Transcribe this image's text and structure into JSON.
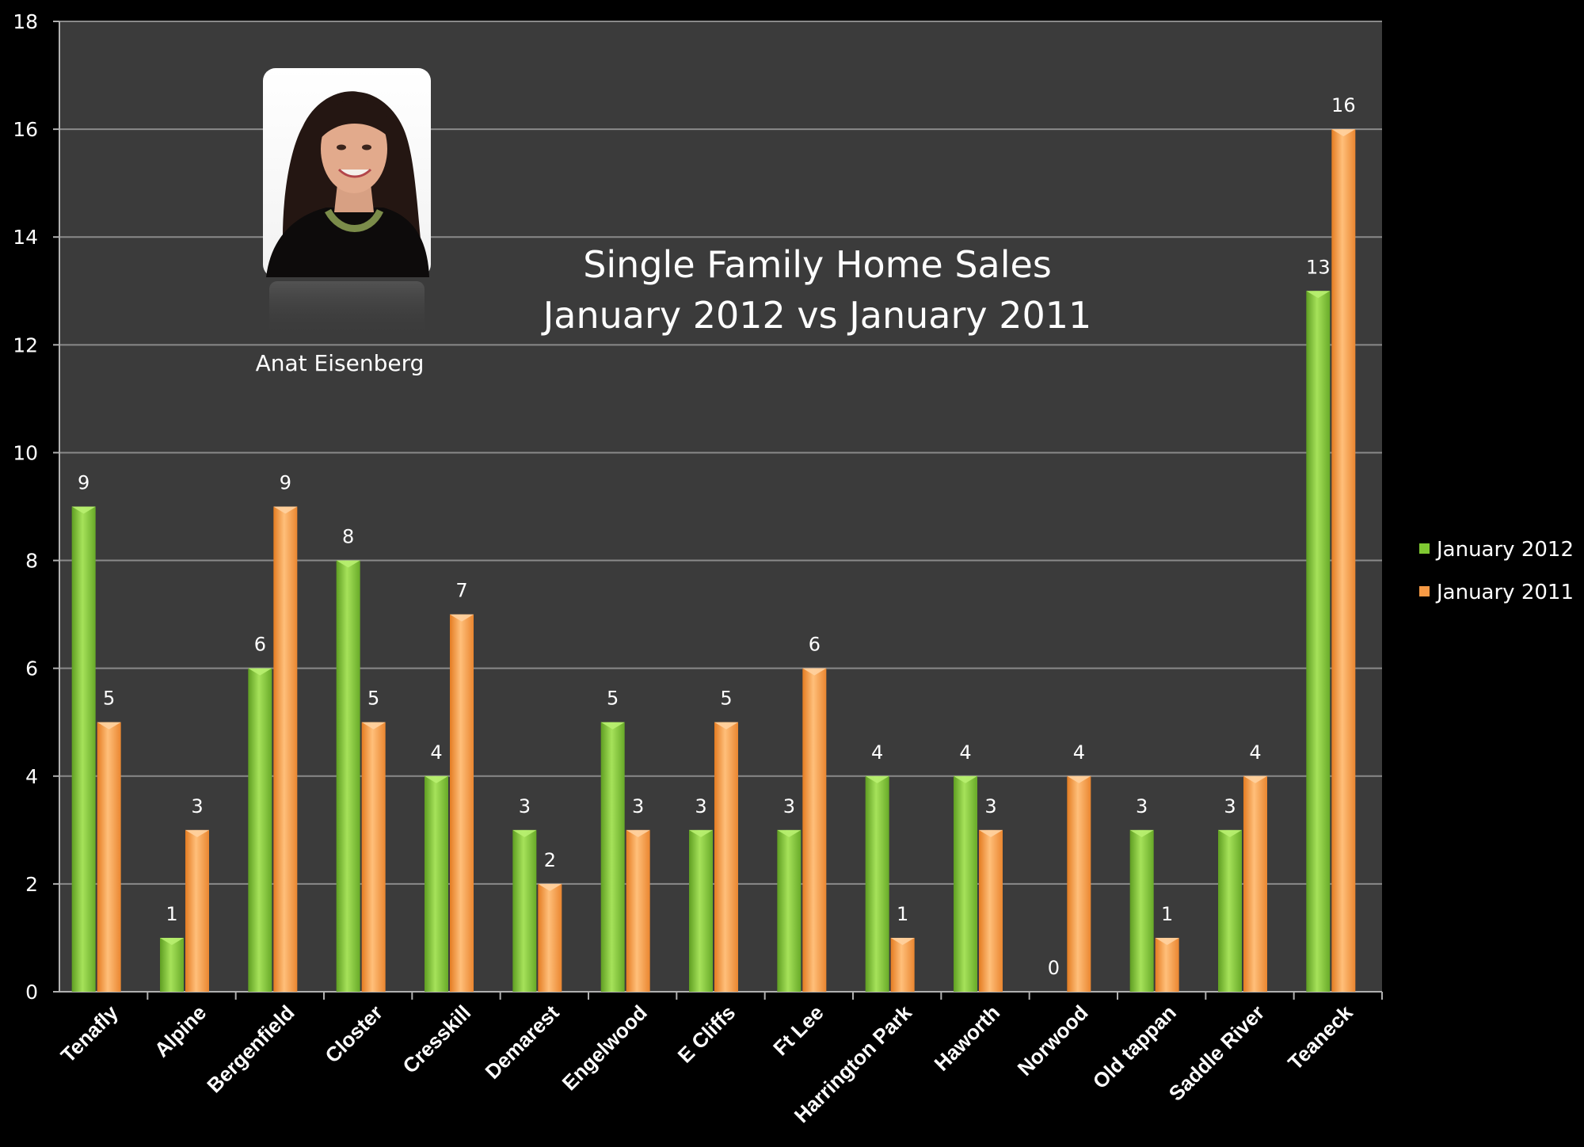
{
  "chart_data": {
    "type": "bar",
    "title": [
      "Single Family Home Sales",
      "January 2012 vs January 2011"
    ],
    "categories": [
      "Tenafly",
      "Alpine",
      "Bergenfield",
      "Closter",
      "Cresskill",
      "Demarest",
      "Engelwood",
      "E Cliffs",
      "Ft Lee",
      "Harrington Park",
      "Haworth",
      "Norwood",
      "Old tappan",
      "Saddle River",
      "Teaneck"
    ],
    "series": [
      {
        "name": "January 2012",
        "color": "#7fc832",
        "values": [
          9,
          1,
          6,
          8,
          4,
          3,
          5,
          3,
          3,
          4,
          4,
          0,
          3,
          3,
          13
        ]
      },
      {
        "name": "January 2011",
        "color": "#f79a45",
        "values": [
          5,
          3,
          9,
          5,
          7,
          2,
          3,
          5,
          6,
          1,
          3,
          4,
          1,
          4,
          16
        ]
      }
    ],
    "ylim": [
      0,
      18
    ],
    "yticks": [
      0,
      2,
      4,
      6,
      8,
      10,
      12,
      14,
      16,
      18
    ],
    "grid": true,
    "legend": "right",
    "data_labels": true,
    "photo_caption": "Anat Eisenberg"
  },
  "colors": {
    "background": "#000000",
    "plot_area": "#3b3b3b",
    "gridline": "#8a8a8a",
    "axis": "#b0b0b0"
  }
}
